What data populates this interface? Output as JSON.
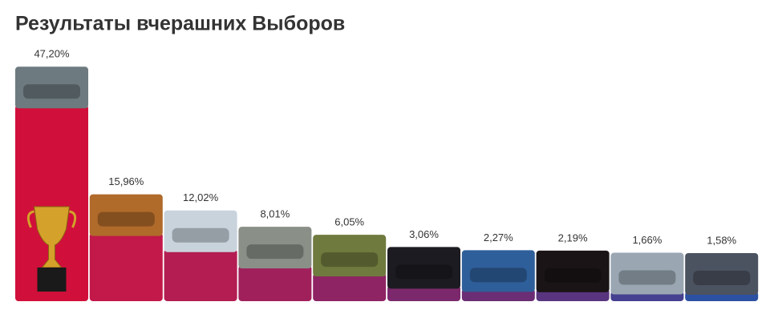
{
  "chart_data": {
    "type": "bar",
    "title": "Результаты вчерашних Выборов",
    "values": [
      47.2,
      15.96,
      12.02,
      8.01,
      6.05,
      3.06,
      2.27,
      2.19,
      1.66,
      1.58
    ],
    "value_labels": [
      "47,20%",
      "15,96%",
      "12,02%",
      "8,01%",
      "6,05%",
      "3,06%",
      "2,27%",
      "2,19%",
      "1,66%",
      "1,58%"
    ],
    "colors": [
      "#d0103a",
      "#c2184a",
      "#b31d52",
      "#a0205c",
      "#8e2464",
      "#7b296c",
      "#6b2d74",
      "#59357f",
      "#45408f",
      "#2c51a3"
    ]
  }
}
